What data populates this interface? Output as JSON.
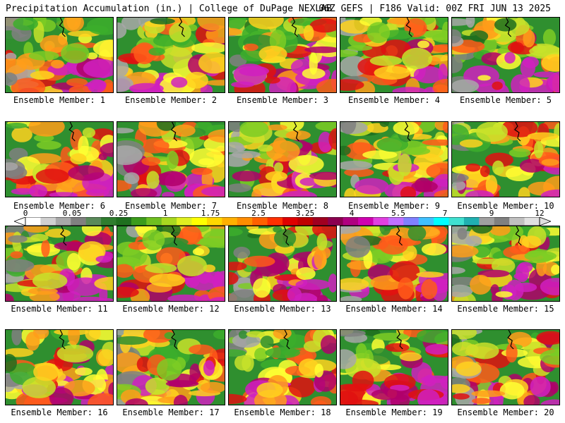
{
  "header": {
    "left": "Precipitation Accumulation (in.) | College of DuPage NEXLAB",
    "right": "06Z GEFS | F186 Valid: 00Z FRI JUN 13 2025"
  },
  "members": [
    {
      "label": "Ensemble Member: 1"
    },
    {
      "label": "Ensemble Member: 2"
    },
    {
      "label": "Ensemble Member: 3"
    },
    {
      "label": "Ensemble Member: 4"
    },
    {
      "label": "Ensemble Member: 5"
    },
    {
      "label": "Ensemble Member: 6"
    },
    {
      "label": "Ensemble Member: 7"
    },
    {
      "label": "Ensemble Member: 8"
    },
    {
      "label": "Ensemble Member: 9"
    },
    {
      "label": "Ensemble Member: 10"
    },
    {
      "label": "Ensemble Member: 11"
    },
    {
      "label": "Ensemble Member: 12"
    },
    {
      "label": "Ensemble Member: 13"
    },
    {
      "label": "Ensemble Member: 14"
    },
    {
      "label": "Ensemble Member: 15"
    },
    {
      "label": "Ensemble Member: 16"
    },
    {
      "label": "Ensemble Member: 17"
    },
    {
      "label": "Ensemble Member: 18"
    },
    {
      "label": "Ensemble Member: 19"
    },
    {
      "label": "Ensemble Member: 20"
    }
  ],
  "colorbar": {
    "tick_labels": [
      "0",
      "0.05",
      "0.25",
      "1",
      "1.75",
      "2.5",
      "3.25",
      "4",
      "5.5",
      "7",
      "9",
      "12"
    ],
    "colors": [
      "#ffffff",
      "#d0d0d0",
      "#a8a8a8",
      "#808080",
      "#5a8a5a",
      "#2f7d2f",
      "#1f6f1f",
      "#3c9c1c",
      "#6fbf20",
      "#a8d820",
      "#e0f020",
      "#ffff00",
      "#ffd700",
      "#ffb000",
      "#ff8c00",
      "#ff6000",
      "#ff3000",
      "#e00000",
      "#c00000",
      "#a00020",
      "#8b0050",
      "#b00080",
      "#d000b0",
      "#e040e0",
      "#c070ff",
      "#8080ff",
      "#40c0ff",
      "#00ffff",
      "#40e0d0",
      "#20b0b0",
      "#a0a0a0",
      "#808080",
      "#c0c0c0",
      "#e0e0e0"
    ]
  }
}
